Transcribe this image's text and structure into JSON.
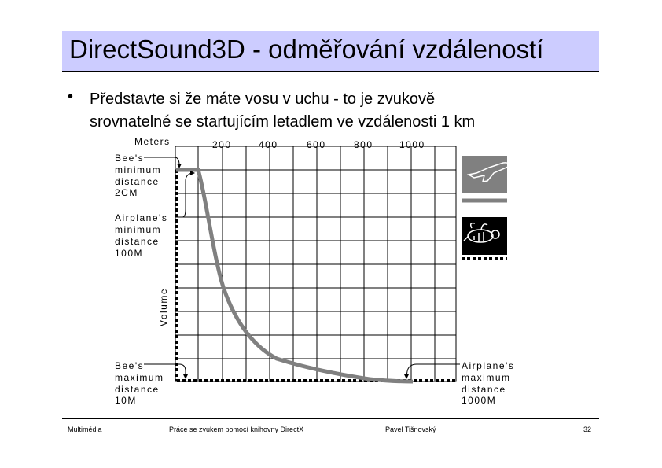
{
  "slide": {
    "title": "DirectSound3D - odměřování vzdáleností",
    "bullet_lines": [
      "Představte si že máte vosu v uchu - to je zvukově",
      "srovnatelné se startujícím letadlem ve vzdálenosti 1 km"
    ]
  },
  "figure": {
    "meters_label": "Meters",
    "meter_ticks": [
      "200",
      "400",
      "600",
      "800",
      "1000"
    ],
    "volume_label": "Volume",
    "annotations": {
      "bee_min": [
        "Bee's",
        "minimum",
        "distance",
        "2CM"
      ],
      "plane_min": [
        "Airplane's",
        "minimum",
        "distance",
        "100M"
      ],
      "bee_max": [
        "Bee's",
        "maximum",
        "distance",
        "10M"
      ],
      "plane_max": [
        "Airplane's",
        "maximum",
        "distance",
        "1000M"
      ]
    },
    "icons": [
      "airplane-icon",
      "bee-icon"
    ],
    "colors": {
      "plane_curve": "#808080",
      "bee_curve": "#000000",
      "title_bg": "#ccccff"
    }
  },
  "footer": {
    "left": "Multimédia",
    "center": "Práce se zvukem pomocí knihovny DirectX",
    "author": "Pavel Tišnovský",
    "page": "32"
  }
}
